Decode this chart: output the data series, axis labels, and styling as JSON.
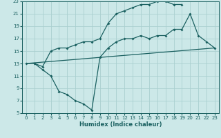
{
  "bg_color": "#cce8e8",
  "grid_color": "#aad0d0",
  "line_color": "#1a6060",
  "xlabel": "Humidex (Indice chaleur)",
  "xlim": [
    -0.5,
    23.5
  ],
  "ylim": [
    5,
    23
  ],
  "xticks": [
    0,
    1,
    2,
    3,
    4,
    5,
    6,
    7,
    8,
    9,
    10,
    11,
    12,
    13,
    14,
    15,
    16,
    17,
    18,
    19,
    20,
    21,
    22,
    23
  ],
  "yticks": [
    5,
    7,
    9,
    11,
    13,
    15,
    17,
    19,
    21,
    23
  ],
  "line1_x": [
    1,
    2,
    3,
    4,
    5,
    6,
    7,
    8,
    9,
    10,
    11,
    12,
    13,
    14,
    15,
    16,
    17,
    18,
    19
  ],
  "line1_y": [
    13,
    12.5,
    15,
    15.5,
    15.5,
    16,
    16.5,
    16.5,
    17,
    19.5,
    21,
    21.5,
    22,
    22.5,
    22.5,
    23,
    23,
    22.5,
    22.5
  ],
  "line2_x": [
    0,
    1,
    2,
    3,
    4,
    5,
    6,
    7,
    8,
    9,
    10,
    11,
    12,
    13,
    14,
    15,
    16,
    17,
    18,
    19,
    20,
    21,
    22,
    23
  ],
  "line2_y": [
    13,
    13,
    12,
    11,
    8.5,
    8,
    7,
    6.5,
    5.5,
    14,
    15.5,
    16.5,
    17,
    17,
    17.5,
    17,
    17.5,
    17.5,
    18.5,
    18.5,
    21,
    17.5,
    16.5,
    15.5
  ],
  "line3_x": [
    0,
    23
  ],
  "line3_y": [
    13,
    15.5
  ],
  "tick_fontsize": 5.0,
  "xlabel_fontsize": 6.0,
  "marker_size": 2.0,
  "lw": 0.9
}
